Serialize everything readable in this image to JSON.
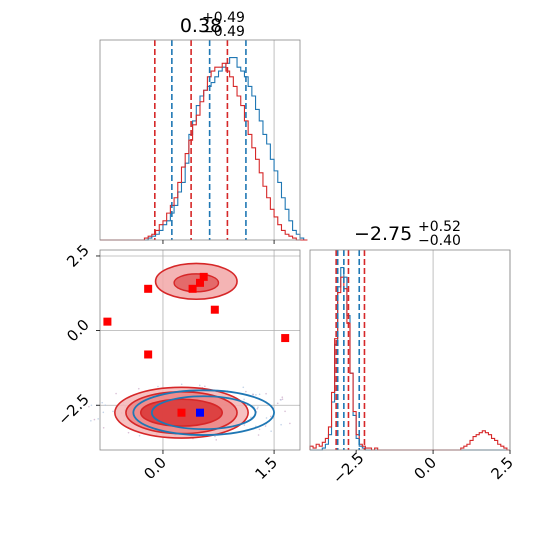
{
  "chart_data": [
    {
      "type": "histogram",
      "panel": "top-left",
      "title": {
        "value": "0.38",
        "sup": "+0.49",
        "sub": "−0.49"
      },
      "xlim": [
        -0.85,
        1.85
      ],
      "bins": {
        "start": -0.85,
        "width": 0.05
      },
      "series": [
        {
          "color": "#1f77b4",
          "values": [
            0,
            0,
            0,
            0,
            0,
            0,
            0,
            0,
            0,
            0,
            0,
            0,
            0,
            1,
            2,
            3,
            5,
            8,
            10,
            14,
            18,
            25,
            30,
            40,
            55,
            62,
            70,
            75,
            78,
            80,
            82,
            85,
            88,
            90,
            92,
            95,
            95,
            90,
            88,
            85,
            80,
            75,
            68,
            62,
            55,
            50,
            42,
            36,
            30,
            22,
            16,
            10,
            5,
            3,
            1,
            0
          ]
        },
        {
          "color": "#d62728",
          "values": [
            0,
            0,
            0,
            0,
            0,
            0,
            0,
            0,
            0,
            0,
            0,
            0,
            1,
            2,
            3,
            5,
            8,
            10,
            14,
            18,
            22,
            30,
            38,
            45,
            52,
            60,
            65,
            72,
            78,
            85,
            88,
            90,
            90,
            92,
            88,
            85,
            80,
            75,
            70,
            62,
            55,
            48,
            42,
            35,
            28,
            22,
            16,
            12,
            8,
            5,
            3,
            2,
            1,
            0,
            0,
            0
          ]
        }
      ],
      "quantile_lines": [
        {
          "color": "#d62728",
          "x": [
            -0.11,
            0.38,
            0.87
          ]
        },
        {
          "color": "#1f77b4",
          "x": [
            0.12,
            0.63,
            1.12
          ]
        }
      ]
    },
    {
      "type": "contour",
      "panel": "bottom-left",
      "xlim": [
        -0.85,
        1.85
      ],
      "ylim": [
        -4.0,
        2.7
      ],
      "xticks": [
        "0.0",
        "1.5"
      ],
      "yticks": [
        "2.5",
        "0.0",
        "−2.5"
      ],
      "red_markers": [
        [
          -0.2,
          1.4
        ],
        [
          0.4,
          1.4
        ],
        [
          0.5,
          1.6
        ],
        [
          0.55,
          1.8
        ],
        [
          -0.75,
          0.3
        ],
        [
          0.7,
          0.7
        ],
        [
          1.65,
          -0.25
        ],
        [
          -0.2,
          -0.8
        ],
        [
          0.25,
          -2.75
        ]
      ],
      "blue_marker": [
        0.5,
        -2.75
      ],
      "red_contours": [
        {
          "cx": 0.25,
          "cy": -2.75,
          "rx": 0.9,
          "ry": 0.85
        },
        {
          "cx": 0.25,
          "cy": -2.75,
          "rx": 0.75,
          "ry": 0.7
        },
        {
          "cx": 0.25,
          "cy": -2.75,
          "rx": 0.55,
          "ry": 0.45
        },
        {
          "cx": 0.45,
          "cy": 1.65,
          "rx": 0.55,
          "ry": 0.6
        }
      ],
      "blue_contours": [
        {
          "cx": 0.55,
          "cy": -2.75,
          "rx": 0.95,
          "ry": 0.75
        },
        {
          "cx": 0.55,
          "cy": -2.75,
          "rx": 0.7,
          "ry": 0.55
        }
      ]
    },
    {
      "type": "histogram",
      "panel": "bottom-right",
      "title": {
        "value": "−2.75",
        "sup": "+0.52",
        "sub": "−0.40"
      },
      "xlim": [
        -4.0,
        2.5
      ],
      "xticks": [
        "−2.5",
        "0.0",
        "2.5"
      ],
      "bins": {
        "start": -4.0,
        "width": 0.1
      },
      "series": [
        {
          "color": "#1f77b4",
          "values": [
            0,
            0,
            0,
            0,
            1,
            3,
            8,
            25,
            55,
            85,
            95,
            90,
            70,
            40,
            18,
            6,
            2,
            1,
            0,
            0,
            0,
            0,
            0,
            0,
            0,
            0,
            0,
            0,
            0,
            0,
            0,
            0,
            0,
            0,
            0,
            0,
            0,
            0,
            0,
            0,
            0,
            0,
            0,
            0,
            0,
            0,
            0,
            0,
            0,
            0,
            0,
            0,
            0,
            0,
            0,
            0,
            0,
            0,
            0,
            0,
            0,
            0,
            0,
            0,
            0
          ]
        },
        {
          "color": "#d62728",
          "values": [
            2,
            1,
            3,
            2,
            4,
            6,
            12,
            30,
            58,
            82,
            90,
            84,
            66,
            40,
            20,
            8,
            3,
            2,
            1,
            1,
            0,
            1,
            0,
            0,
            0,
            0,
            0,
            0,
            0,
            0,
            0,
            0,
            0,
            0,
            0,
            0,
            0,
            0,
            0,
            0,
            0,
            0,
            0,
            0,
            0,
            0,
            0,
            0,
            0,
            1,
            2,
            3,
            5,
            7,
            8,
            9,
            10,
            9,
            8,
            6,
            5,
            3,
            2,
            1,
            0
          ]
        }
      ],
      "quantile_lines": [
        {
          "color": "#d62728",
          "x": [
            -3.15,
            -2.75,
            -2.23
          ]
        },
        {
          "color": "#1f77b4",
          "x": [
            -3.1,
            -2.9,
            -2.4
          ]
        }
      ]
    }
  ]
}
